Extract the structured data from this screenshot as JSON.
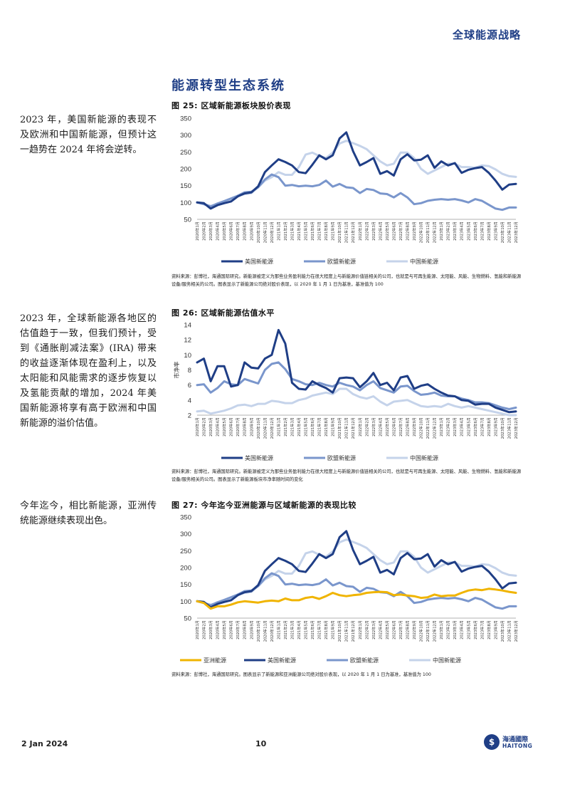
{
  "header": {
    "title": "全球能源战略"
  },
  "section_title": "能源转型生态系统",
  "sidebar": [
    "2023 年，美国新能源的表现不及欧洲和中国新能源，但预计这一趋势在 2024 年将会逆转。",
    "2023 年，全球新能源各地区的估值趋于一致，但我们预计，受到《通胀削减法案》(IRA) 带来的收益逐渐体现在盈利上，以及太阳能和风能需求的逐步恢复以及氢能贡献的增加，2024 年美国新能源将享有高于欧洲和中国新能源的溢价估值。",
    "今年迄今，相比新能源，亚洲传统能源继续表现出色。"
  ],
  "figures": [
    {
      "title": "图 25:  区域新能源板块股价表现",
      "source": "资料来源：彭博社，海通国际研究。新能源被定义为那些业务盈利能力在很大程度上与新能源价值链相关的公司，也就是与可再生能源、太阳能、风能、生物燃料、氢能和新能源设备/服务相关的公司。图表显示了新能源公司绝对股价表现，以 2020 年 1 月 1 日为基准，基准值为 100"
    },
    {
      "title": "图 26:  区域新能源估值水平",
      "source": "资料来源：彭博社，海通国际研究。新能源被定义为那些业务盈利能力在很大程度上与新能源价值链相关的公司，也就是与可再生能源、太阳能、风能、生物燃料、氢能和新能源设备/服务相关的公司。图表显示了新能源板块市净率随时间的变化"
    },
    {
      "title": "图 27:  今年迄今亚洲能源与区域新能源的表现比较",
      "source": "资料来源：彭博社，海通国际研究。图表显示了新能源和亚洲能源公司绝对股价表现，以 2020 年 1 月 1 日为基准，基准值为 100"
    }
  ],
  "chart_data": [
    {
      "type": "line",
      "categories": [
        "2020年1月",
        "2020年2月",
        "2020年3月",
        "2020年4月",
        "2020年5月",
        "2020年6月",
        "2020年7月",
        "2020年8月",
        "2020年9月",
        "2020年10月",
        "2020年11月",
        "2020年12月",
        "2021年1月",
        "2021年2月",
        "2021年3月",
        "2021年4月",
        "2021年5月",
        "2021年6月",
        "2021年7月",
        "2021年8月",
        "2021年9月",
        "2021年10月",
        "2021年11月",
        "2021年12月",
        "2022年1月",
        "2022年2月",
        "2022年3月",
        "2022年4月",
        "2022年5月",
        "2022年6月",
        "2022年7月",
        "2022年8月",
        "2022年9月",
        "2022年10月",
        "2022年11月",
        "2022年12月",
        "2023年1月",
        "2023年2月",
        "2023年3月",
        "2023年4月",
        "2023年5月",
        "2023年6月",
        "2023年7月",
        "2023年8月",
        "2023年9月",
        "2023年10月",
        "2023年11月",
        "2023年12月"
      ],
      "ylim": [
        50,
        350
      ],
      "yticks": [
        50,
        100,
        150,
        200,
        250,
        300,
        350
      ],
      "ylabel": "",
      "series": [
        {
          "name": "美国新能源",
          "color": "#1f3e86",
          "width": 3,
          "values": [
            100,
            98,
            82,
            92,
            98,
            103,
            118,
            127,
            130,
            148,
            190,
            210,
            228,
            220,
            210,
            190,
            187,
            212,
            240,
            228,
            240,
            290,
            308,
            252,
            210,
            220,
            232,
            185,
            193,
            180,
            228,
            243,
            225,
            227,
            240,
            203,
            222,
            210,
            217,
            188,
            197,
            202,
            205,
            188,
            165,
            138,
            153,
            155
          ]
        },
        {
          "name": "欧盟新能源",
          "color": "#7a96cc",
          "width": 3,
          "values": [
            100,
            95,
            88,
            97,
            104,
            112,
            120,
            130,
            132,
            145,
            168,
            183,
            175,
            150,
            152,
            148,
            150,
            148,
            152,
            165,
            147,
            155,
            145,
            143,
            128,
            140,
            137,
            127,
            125,
            115,
            128,
            115,
            95,
            98,
            105,
            108,
            110,
            108,
            110,
            106,
            100,
            110,
            105,
            93,
            82,
            78,
            85,
            85
          ]
        },
        {
          "name": "中国新能源",
          "color": "#c5d3ea",
          "width": 3,
          "values": [
            100,
            95,
            90,
            95,
            100,
            110,
            120,
            125,
            128,
            145,
            165,
            175,
            190,
            182,
            182,
            205,
            242,
            248,
            238,
            232,
            248,
            275,
            283,
            276,
            268,
            258,
            240,
            222,
            210,
            215,
            248,
            248,
            232,
            200,
            185,
            195,
            205,
            215,
            215,
            205,
            205,
            203,
            210,
            208,
            198,
            185,
            178,
            176
          ]
        }
      ]
    },
    {
      "type": "line",
      "categories": [
        "2020年1月",
        "2020年2月",
        "2020年3月",
        "2020年4月",
        "2020年5月",
        "2020年6月",
        "2020年7月",
        "2020年8月",
        "2020年9月",
        "2020年10月",
        "2020年11月",
        "2020年12月",
        "2021年1月",
        "2021年2月",
        "2021年3月",
        "2021年4月",
        "2021年5月",
        "2021年6月",
        "2021年7月",
        "2021年8月",
        "2021年9月",
        "2021年10月",
        "2021年11月",
        "2021年12月",
        "2022年1月",
        "2022年2月",
        "2022年3月",
        "2022年4月",
        "2022年5月",
        "2022年6月",
        "2022年7月",
        "2022年8月",
        "2022年9月",
        "2022年10月",
        "2022年11月",
        "2022年12月",
        "2023年1月",
        "2023年2月",
        "2023年3月",
        "2023年4月",
        "2023年5月",
        "2023年6月",
        "2023年7月",
        "2023年8月",
        "2023年9月",
        "2023年10月",
        "2023年11月",
        "2023年12月"
      ],
      "ylim": [
        2,
        14
      ],
      "yticks": [
        2,
        4,
        6,
        8,
        10,
        12,
        14
      ],
      "ylabel": "市净率",
      "series": [
        {
          "name": "美国新能源",
          "color": "#1f3e86",
          "width": 3,
          "values": [
            9.0,
            9.5,
            6.5,
            8.5,
            8.5,
            5.8,
            6.0,
            9.0,
            8.3,
            8.2,
            9.5,
            10.0,
            13.3,
            11.5,
            6.3,
            5.5,
            5.4,
            6.5,
            6.0,
            5.6,
            5.0,
            6.9,
            7.0,
            6.9,
            5.7,
            6.5,
            7.6,
            6.0,
            6.3,
            5.3,
            7.0,
            7.2,
            5.5,
            5.9,
            6.1,
            5.5,
            5.0,
            4.6,
            4.5,
            4.0,
            3.9,
            3.4,
            3.5,
            3.5,
            3.0,
            2.7,
            2.4,
            2.5
          ]
        },
        {
          "name": "欧盟新能源",
          "color": "#7a96cc",
          "width": 3,
          "values": [
            6.0,
            6.1,
            5.0,
            5.6,
            6.5,
            6.1,
            6.0,
            6.8,
            6.5,
            6.2,
            8.0,
            8.8,
            9.0,
            8.1,
            6.8,
            6.5,
            6.1,
            6.0,
            6.3,
            6.0,
            5.8,
            6.3,
            6.0,
            5.8,
            5.3,
            6.0,
            6.5,
            5.6,
            5.3,
            5.0,
            5.8,
            5.9,
            5.2,
            4.7,
            4.8,
            5.0,
            4.6,
            4.5,
            4.5,
            4.2,
            4.0,
            3.7,
            3.7,
            3.6,
            3.3,
            3.0,
            2.8,
            3.0
          ]
        },
        {
          "name": "中国新能源",
          "color": "#c5d3ea",
          "width": 3,
          "values": [
            2.5,
            2.6,
            2.2,
            2.4,
            2.6,
            2.9,
            3.3,
            3.4,
            3.2,
            3.5,
            3.5,
            3.9,
            3.8,
            3.6,
            3.6,
            4.0,
            4.2,
            4.6,
            4.8,
            5.0,
            4.8,
            5.5,
            5.5,
            4.8,
            4.4,
            4.2,
            4.5,
            3.8,
            3.3,
            3.8,
            3.9,
            4.0,
            3.6,
            3.2,
            3.1,
            3.2,
            3.1,
            3.5,
            3.2,
            3.0,
            3.2,
            3.0,
            2.8,
            2.6,
            2.4,
            2.2,
            2.0,
            2.0
          ]
        }
      ]
    },
    {
      "type": "line",
      "categories": [
        "2020年1月",
        "2020年2月",
        "2020年3月",
        "2020年4月",
        "2020年5月",
        "2020年6月",
        "2020年7月",
        "2020年8月",
        "2020年9月",
        "2020年10月",
        "2020年11月",
        "2020年12月",
        "2021年1月",
        "2021年2月",
        "2021年3月",
        "2021年4月",
        "2021年5月",
        "2021年6月",
        "2021年7月",
        "2021年8月",
        "2021年9月",
        "2021年10月",
        "2021年11月",
        "2021年12月",
        "2022年1月",
        "2022年2月",
        "2022年3月",
        "2022年4月",
        "2022年5月",
        "2022年6月",
        "2022年7月",
        "2022年8月",
        "2022年9月",
        "2022年10月",
        "2022年11月",
        "2022年12月",
        "2023年1月",
        "2023年2月",
        "2023年3月",
        "2023年4月",
        "2023年5月",
        "2023年6月",
        "2023年7月",
        "2023年8月",
        "2023年9月",
        "2023年10月",
        "2023年11月",
        "2023年12月"
      ],
      "ylim": [
        50,
        350
      ],
      "yticks": [
        50,
        100,
        150,
        200,
        250,
        300,
        350
      ],
      "ylabel": "",
      "series": [
        {
          "name": "亚洲能源",
          "color": "#f0b400",
          "width": 3,
          "values": [
            100,
            95,
            78,
            85,
            85,
            90,
            97,
            100,
            98,
            96,
            100,
            102,
            100,
            108,
            103,
            103,
            110,
            113,
            107,
            115,
            125,
            118,
            115,
            118,
            120,
            125,
            127,
            128,
            127,
            118,
            120,
            117,
            115,
            110,
            112,
            120,
            115,
            117,
            117,
            125,
            132,
            135,
            133,
            137,
            135,
            132,
            128,
            125
          ]
        },
        {
          "name": "美国新能源",
          "color": "#1f3e86",
          "width": 3,
          "values": [
            100,
            98,
            82,
            92,
            98,
            103,
            118,
            127,
            130,
            148,
            190,
            210,
            228,
            220,
            210,
            190,
            187,
            212,
            240,
            228,
            240,
            290,
            308,
            252,
            210,
            220,
            232,
            185,
            193,
            180,
            228,
            243,
            225,
            227,
            240,
            203,
            222,
            210,
            217,
            188,
            197,
            202,
            205,
            188,
            165,
            138,
            153,
            155
          ]
        },
        {
          "name": "欧盟新能源",
          "color": "#7a96cc",
          "width": 3,
          "values": [
            100,
            95,
            88,
            97,
            104,
            112,
            120,
            130,
            132,
            145,
            168,
            183,
            175,
            150,
            152,
            148,
            150,
            148,
            152,
            165,
            147,
            155,
            145,
            143,
            128,
            140,
            137,
            127,
            125,
            115,
            128,
            115,
            95,
            98,
            105,
            108,
            110,
            108,
            110,
            106,
            100,
            110,
            105,
            93,
            82,
            78,
            85,
            85
          ]
        },
        {
          "name": "中国新能源",
          "color": "#c5d3ea",
          "width": 3,
          "values": [
            100,
            95,
            90,
            95,
            100,
            110,
            120,
            125,
            128,
            145,
            165,
            175,
            190,
            182,
            182,
            205,
            242,
            248,
            238,
            232,
            248,
            275,
            283,
            276,
            268,
            258,
            240,
            222,
            210,
            215,
            248,
            248,
            232,
            200,
            185,
            195,
            205,
            215,
            215,
            205,
            205,
            203,
            210,
            208,
            198,
            185,
            178,
            176
          ]
        }
      ]
    }
  ],
  "footer": {
    "date": "2 Jan 2024",
    "page": "10",
    "logo_cn": "海通國際",
    "logo_en": "HAITONG"
  }
}
